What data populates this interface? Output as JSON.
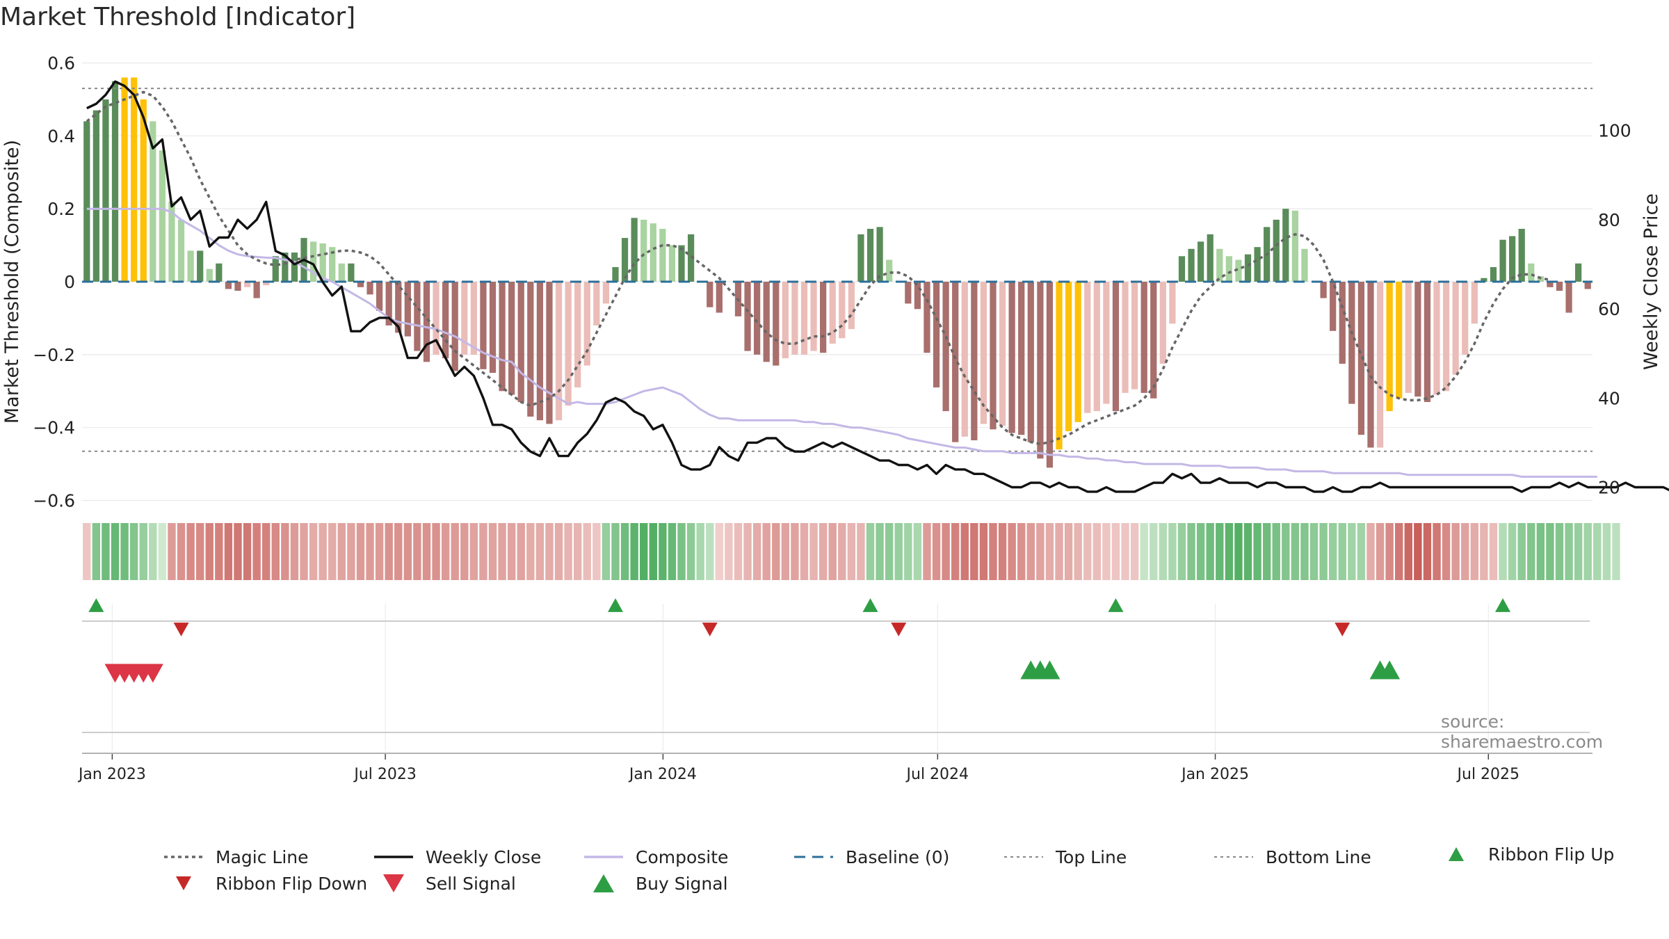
{
  "page": {
    "title": "Market Threshold [Indicator]",
    "source": "source: sharemaestro.com"
  },
  "colors": {
    "bar_pos_dark": "#5a8c5a",
    "bar_pos_light": "#a9d3a0",
    "bar_neg_dark": "#a86f6c",
    "bar_neg_light": "#ebbdb8",
    "bar_highlight": "#ffc107",
    "weekly_close": "#111111",
    "composite": "#c3b8e6",
    "magic_line": "#666666",
    "baseline": "#2c6f99",
    "threshold_lines": "#888888",
    "signal_up": "#2e9e44",
    "signal_down": "#dc3545",
    "ribbon_green_light": "#cfe9cf",
    "ribbon_green_dark": "#4aaa5c",
    "ribbon_red_light": "#f3d6d4",
    "ribbon_red_dark": "#c75f5a",
    "grid": "#e9e9e9"
  },
  "chart_data": {
    "type": "bar",
    "title": "Market Threshold [Indicator]",
    "ylabel": "Market Threshold (Composite)",
    "y2label": "Weekly Close Price",
    "ylim": [
      -0.62,
      0.62
    ],
    "y2lim": [
      15.4,
      116.8
    ],
    "yticks": [
      0.6,
      0.4,
      0.2,
      0,
      -0.2,
      -0.4,
      -0.6
    ],
    "ytick_labels": [
      "0.6",
      "0.4",
      "0.2",
      "0",
      "−0.2",
      "−0.4",
      "−0.6"
    ],
    "y2ticks": [
      100,
      80,
      60,
      40,
      20
    ],
    "y2tick_labels": [
      "100",
      "80",
      "60",
      "40",
      "20"
    ],
    "x_start": "2022-12-12",
    "x_end": "2025-09-08",
    "xticks": [
      "2023-01-01",
      "2023-07-01",
      "2024-01-01",
      "2024-07-01",
      "2025-01-01",
      "2025-07-01"
    ],
    "xtick_labels": [
      "Jan 2023",
      "Jul 2023",
      "Jan 2024",
      "Jul 2024",
      "Jan 2025",
      "Jul 2025"
    ],
    "top_line": 0.53,
    "bottom_line": -0.465,
    "baseline": 0,
    "composite_bars": [
      0.44,
      0.47,
      0.5,
      0.55,
      0.56,
      0.56,
      0.5,
      0.44,
      0.36,
      0.22,
      0.17,
      0.085,
      0.085,
      0.035,
      0.05,
      -0.02,
      -0.025,
      -0.015,
      -0.045,
      -0.01,
      0.07,
      0.08,
      0.08,
      0.12,
      0.11,
      0.105,
      0.095,
      0.05,
      0.05,
      -0.015,
      -0.035,
      -0.08,
      -0.12,
      -0.14,
      -0.15,
      -0.19,
      -0.22,
      -0.2,
      -0.21,
      -0.245,
      -0.2,
      -0.2,
      -0.24,
      -0.25,
      -0.3,
      -0.31,
      -0.33,
      -0.37,
      -0.38,
      -0.39,
      -0.38,
      -0.34,
      -0.29,
      -0.23,
      -0.12,
      -0.06,
      0.04,
      0.12,
      0.175,
      0.17,
      0.16,
      0.145,
      0.1,
      0.1,
      0.13,
      0,
      -0.07,
      -0.085,
      0,
      -0.095,
      -0.19,
      -0.2,
      -0.22,
      -0.23,
      -0.21,
      -0.2,
      -0.2,
      -0.19,
      -0.195,
      -0.17,
      -0.155,
      -0.13,
      0.13,
      0.145,
      0.15,
      0.06,
      0,
      -0.06,
      -0.075,
      -0.195,
      -0.29,
      -0.355,
      -0.44,
      -0.425,
      -0.435,
      -0.39,
      -0.405,
      -0.395,
      -0.415,
      -0.42,
      -0.44,
      -0.485,
      -0.51,
      -0.46,
      -0.41,
      -0.385,
      -0.36,
      -0.355,
      -0.335,
      -0.355,
      -0.305,
      -0.295,
      -0.305,
      -0.32,
      -0.225,
      -0.115,
      0.07,
      0.09,
      0.11,
      0.13,
      0.09,
      0.07,
      0.06,
      0.075,
      0.095,
      0.15,
      0.17,
      0.2,
      0.195,
      0.09,
      0,
      -0.045,
      -0.135,
      -0.225,
      -0.335,
      -0.42,
      -0.455,
      -0.455,
      -0.355,
      -0.32,
      -0.305,
      -0.315,
      -0.33,
      -0.31,
      -0.3,
      -0.255,
      -0.2,
      -0.115,
      0.01,
      0.04,
      0.115,
      0.125,
      0.145,
      0.05,
      0.015,
      -0.015,
      -0.025,
      -0.085,
      0.05,
      -0.02
    ],
    "bar_highlight_weeks": [
      4,
      5,
      6,
      103,
      104,
      105,
      138,
      139
    ],
    "weekly_close": [
      105,
      106,
      108,
      111,
      110,
      108,
      103,
      96,
      98,
      83,
      85,
      80,
      82,
      74,
      76,
      76,
      80,
      78,
      80,
      84,
      73,
      72,
      70,
      71,
      70,
      66,
      63,
      65,
      55,
      55,
      57,
      58,
      58,
      56,
      49,
      49,
      52,
      53,
      49,
      45,
      47,
      45,
      40,
      34,
      34,
      33,
      30,
      28,
      27,
      31,
      27,
      27,
      30,
      32,
      35,
      39,
      40,
      39,
      37,
      36,
      33,
      34,
      30,
      25,
      24,
      24,
      25,
      29,
      27,
      26,
      30,
      30,
      31,
      31,
      29,
      28,
      28,
      29,
      30,
      29,
      30,
      29,
      28,
      27,
      26,
      26,
      25,
      25,
      24,
      25,
      23,
      25,
      24,
      24,
      23,
      23,
      22,
      21,
      20,
      20,
      21,
      21,
      20,
      21,
      20,
      20,
      19,
      19,
      20,
      19,
      19,
      19,
      20,
      21,
      21,
      23,
      22,
      23,
      21,
      21,
      22,
      21,
      21,
      21,
      20,
      21,
      21,
      20,
      20,
      20,
      19,
      19,
      20,
      19,
      19,
      20,
      20,
      21,
      20,
      20,
      20,
      20,
      20,
      20,
      20,
      20,
      20,
      20,
      20,
      20,
      20,
      20,
      19,
      20,
      20,
      20,
      21,
      20,
      21,
      20,
      20,
      20,
      20,
      21,
      20,
      20,
      20,
      20,
      19,
      22,
      20
    ],
    "composite_line": [
      0.2,
      0.2,
      0.2,
      0.2,
      0.2,
      0.2,
      0.2,
      0.2,
      0.2,
      0.19,
      0.17,
      0.155,
      0.14,
      0.12,
      0.1,
      0.085,
      0.075,
      0.07,
      0.068,
      0.066,
      0.065,
      0.06,
      0.055,
      0.04,
      0.025,
      0.01,
      0,
      -0.015,
      -0.03,
      -0.045,
      -0.06,
      -0.08,
      -0.1,
      -0.11,
      -0.115,
      -0.12,
      -0.125,
      -0.13,
      -0.14,
      -0.15,
      -0.165,
      -0.18,
      -0.195,
      -0.205,
      -0.215,
      -0.22,
      -0.25,
      -0.27,
      -0.29,
      -0.305,
      -0.32,
      -0.335,
      -0.33,
      -0.335,
      -0.335,
      -0.335,
      -0.33,
      -0.32,
      -0.31,
      -0.3,
      -0.295,
      -0.29,
      -0.3,
      -0.31,
      -0.33,
      -0.35,
      -0.365,
      -0.375,
      -0.375,
      -0.38,
      -0.38,
      -0.38,
      -0.38,
      -0.38,
      -0.38,
      -0.38,
      -0.385,
      -0.385,
      -0.39,
      -0.39,
      -0.395,
      -0.4,
      -0.4,
      -0.405,
      -0.41,
      -0.415,
      -0.42,
      -0.43,
      -0.435,
      -0.44,
      -0.445,
      -0.45,
      -0.455,
      -0.455,
      -0.46,
      -0.465,
      -0.465,
      -0.465,
      -0.47,
      -0.47,
      -0.47,
      -0.47,
      -0.475,
      -0.475,
      -0.48,
      -0.48,
      -0.485,
      -0.485,
      -0.49,
      -0.49,
      -0.495,
      -0.495,
      -0.5,
      -0.5,
      -0.5,
      -0.5,
      -0.5,
      -0.505,
      -0.505,
      -0.505,
      -0.505,
      -0.51,
      -0.51,
      -0.51,
      -0.51,
      -0.515,
      -0.515,
      -0.515,
      -0.52,
      -0.52,
      -0.52,
      -0.52,
      -0.525,
      -0.525,
      -0.525,
      -0.525,
      -0.525,
      -0.525,
      -0.525,
      -0.525,
      -0.53,
      -0.53,
      -0.53,
      -0.53,
      -0.53,
      -0.53,
      -0.53,
      -0.53,
      -0.53,
      -0.53,
      -0.53,
      -0.53,
      -0.535,
      -0.535,
      -0.535,
      -0.535,
      -0.535,
      -0.535,
      -0.535,
      -0.535,
      -0.535
    ],
    "magic_line": [
      0.44,
      0.46,
      0.48,
      0.49,
      0.5,
      0.51,
      0.52,
      0.51,
      0.48,
      0.44,
      0.39,
      0.34,
      0.28,
      0.23,
      0.18,
      0.14,
      0.1,
      0.075,
      0.06,
      0.05,
      0.045,
      0.05,
      0.06,
      0.065,
      0.07,
      0.075,
      0.08,
      0.085,
      0.085,
      0.08,
      0.07,
      0.05,
      0.02,
      -0.01,
      -0.04,
      -0.07,
      -0.1,
      -0.13,
      -0.16,
      -0.19,
      -0.21,
      -0.23,
      -0.25,
      -0.27,
      -0.29,
      -0.31,
      -0.33,
      -0.34,
      -0.33,
      -0.32,
      -0.3,
      -0.27,
      -0.23,
      -0.19,
      -0.14,
      -0.09,
      -0.04,
      0.01,
      0.05,
      0.075,
      0.09,
      0.1,
      0.1,
      0.09,
      0.07,
      0.05,
      0.03,
      0.01,
      -0.02,
      -0.05,
      -0.08,
      -0.11,
      -0.14,
      -0.16,
      -0.17,
      -0.17,
      -0.16,
      -0.15,
      -0.15,
      -0.14,
      -0.12,
      -0.09,
      -0.05,
      -0.01,
      0.015,
      0.025,
      0.025,
      0.015,
      -0.01,
      -0.05,
      -0.1,
      -0.15,
      -0.21,
      -0.26,
      -0.3,
      -0.34,
      -0.37,
      -0.4,
      -0.42,
      -0.43,
      -0.44,
      -0.445,
      -0.44,
      -0.43,
      -0.42,
      -0.405,
      -0.39,
      -0.38,
      -0.37,
      -0.36,
      -0.35,
      -0.34,
      -0.32,
      -0.29,
      -0.24,
      -0.18,
      -0.13,
      -0.08,
      -0.04,
      -0.015,
      0.01,
      0.025,
      0.035,
      0.045,
      0.06,
      0.075,
      0.1,
      0.12,
      0.13,
      0.125,
      0.1,
      0.06,
      0,
      -0.07,
      -0.14,
      -0.2,
      -0.26,
      -0.29,
      -0.31,
      -0.32,
      -0.325,
      -0.325,
      -0.32,
      -0.31,
      -0.29,
      -0.26,
      -0.22,
      -0.17,
      -0.11,
      -0.06,
      -0.02,
      0.01,
      0.02,
      0.02,
      0.01,
      0.005
    ],
    "ribbon": [
      -0.3,
      0.6,
      0.7,
      0.75,
      0.7,
      0.6,
      0.5,
      0.35,
      0.2,
      -0.55,
      -0.6,
      -0.65,
      -0.65,
      -0.7,
      -0.7,
      -0.75,
      -0.75,
      -0.75,
      -0.7,
      -0.7,
      -0.65,
      -0.6,
      -0.55,
      -0.5,
      -0.45,
      -0.45,
      -0.45,
      -0.5,
      -0.5,
      -0.55,
      -0.55,
      -0.55,
      -0.6,
      -0.6,
      -0.6,
      -0.6,
      -0.6,
      -0.6,
      -0.55,
      -0.55,
      -0.55,
      -0.5,
      -0.5,
      -0.5,
      -0.5,
      -0.5,
      -0.5,
      -0.45,
      -0.45,
      -0.45,
      -0.45,
      -0.4,
      -0.4,
      -0.35,
      -0.3,
      0.5,
      0.6,
      0.7,
      0.8,
      0.85,
      0.85,
      0.8,
      0.75,
      0.65,
      0.55,
      0.4,
      0.3,
      -0.25,
      -0.3,
      -0.35,
      -0.4,
      -0.45,
      -0.5,
      -0.55,
      -0.5,
      -0.5,
      -0.45,
      -0.4,
      -0.45,
      -0.5,
      -0.45,
      -0.4,
      -0.4,
      0.5,
      0.55,
      0.55,
      0.5,
      0.45,
      0.4,
      -0.55,
      -0.6,
      -0.65,
      -0.7,
      -0.75,
      -0.75,
      -0.75,
      -0.7,
      -0.7,
      -0.65,
      -0.6,
      -0.55,
      -0.5,
      -0.45,
      -0.45,
      -0.45,
      -0.4,
      -0.35,
      -0.35,
      -0.3,
      -0.3,
      -0.3,
      -0.3,
      0.25,
      0.3,
      0.35,
      0.4,
      0.5,
      0.6,
      0.65,
      0.7,
      0.75,
      0.8,
      0.85,
      0.8,
      0.75,
      0.7,
      0.65,
      0.6,
      0.6,
      0.6,
      0.55,
      0.55,
      0.5,
      0.5,
      0.45,
      0.45,
      -0.45,
      -0.55,
      -0.65,
      -0.75,
      -0.85,
      -0.9,
      -0.85,
      -0.75,
      -0.65,
      -0.55,
      -0.5,
      -0.45,
      -0.4,
      -0.35,
      0.35,
      0.45,
      0.55,
      0.6,
      0.65,
      0.65,
      0.6,
      0.55,
      0.5,
      0.45,
      0.4,
      0.35,
      0.3
    ],
    "ribbon_flip_up_weeks": [
      1,
      56,
      83,
      109,
      150
    ],
    "ribbon_flip_down_weeks": [
      10,
      66,
      86,
      133
    ],
    "sell_signal_weeks": [
      3,
      4,
      5,
      6,
      7
    ],
    "buy_signal_weeks": [
      100,
      101,
      102,
      137,
      138
    ],
    "legend": [
      {
        "label": "Magic Line",
        "kind": "dotted-line"
      },
      {
        "label": "Weekly Close",
        "kind": "solid-line"
      },
      {
        "label": "Composite",
        "kind": "lavender-line"
      },
      {
        "label": "Baseline (0)",
        "kind": "dashed-line"
      },
      {
        "label": "Top Line",
        "kind": "fine-dotted-line"
      },
      {
        "label": "Bottom Line",
        "kind": "fine-dotted-line"
      },
      {
        "label": "Ribbon Flip Up",
        "kind": "small-up-triangle"
      },
      {
        "label": "Ribbon Flip Down",
        "kind": "small-down-triangle"
      },
      {
        "label": "Sell Signal",
        "kind": "big-down-triangle"
      },
      {
        "label": "Buy Signal",
        "kind": "big-up-triangle"
      }
    ]
  }
}
